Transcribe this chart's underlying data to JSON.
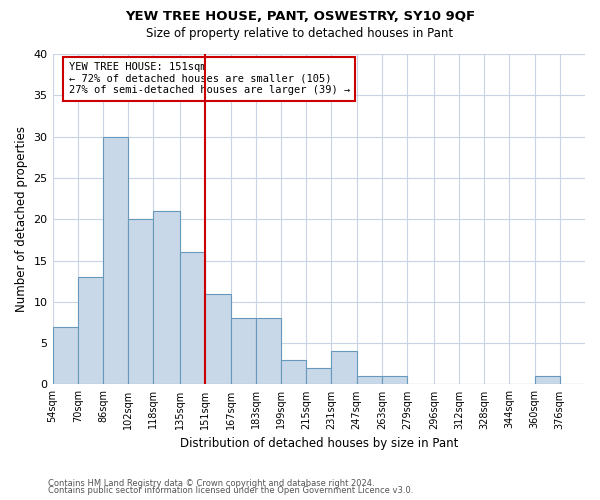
{
  "title": "YEW TREE HOUSE, PANT, OSWESTRY, SY10 9QF",
  "subtitle": "Size of property relative to detached houses in Pant",
  "xlabel": "Distribution of detached houses by size in Pant",
  "ylabel": "Number of detached properties",
  "bin_labels": [
    "54sqm",
    "70sqm",
    "86sqm",
    "102sqm",
    "118sqm",
    "135sqm",
    "151sqm",
    "167sqm",
    "183sqm",
    "199sqm",
    "215sqm",
    "231sqm",
    "247sqm",
    "263sqm",
    "279sqm",
    "296sqm",
    "312sqm",
    "328sqm",
    "344sqm",
    "360sqm",
    "376sqm"
  ],
  "bin_edges": [
    54,
    70,
    86,
    102,
    118,
    135,
    151,
    167,
    183,
    199,
    215,
    231,
    247,
    263,
    279,
    296,
    312,
    328,
    344,
    360,
    376,
    392
  ],
  "counts": [
    7,
    13,
    30,
    20,
    21,
    16,
    11,
    8,
    8,
    3,
    2,
    4,
    1,
    1,
    0,
    0,
    0,
    0,
    0,
    1,
    0
  ],
  "marker_value": 151,
  "marker_label": "YEW TREE HOUSE: 151sqm",
  "annotation_line1": "← 72% of detached houses are smaller (105)",
  "annotation_line2": "27% of semi-detached houses are larger (39) →",
  "ylim": [
    0,
    40
  ],
  "yticks": [
    0,
    5,
    10,
    15,
    20,
    25,
    30,
    35,
    40
  ],
  "bar_color": "#c8d8e8",
  "bar_edge_color": "#6699bb",
  "marker_color": "#cc0000",
  "annotation_box_color": "#cc0000",
  "grid_color": "#c8d4e4",
  "footer1": "Contains HM Land Registry data © Crown copyright and database right 2024.",
  "footer2": "Contains public sector information licensed under the Open Government Licence v3.0."
}
